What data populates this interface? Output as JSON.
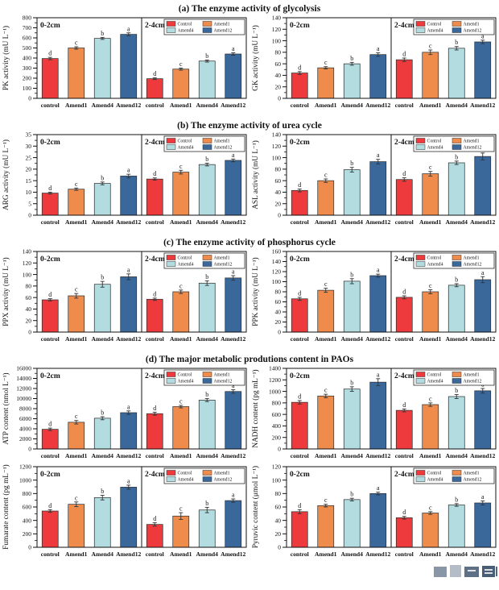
{
  "figure": {
    "sections": [
      {
        "id": "a",
        "title": "(a) The enzyme activity of glycolysis"
      },
      {
        "id": "b",
        "title": "(b) The enzyme activity of urea cycle"
      },
      {
        "id": "c",
        "title": "(c) The enzyme activity of phosphorus cycle"
      },
      {
        "id": "d",
        "title": "(d) The major metabolic produtions content in PAOs"
      }
    ],
    "panel_labels": [
      "0-2cm",
      "2-4cm"
    ],
    "categories": [
      "control",
      "Amend1",
      "Amend4",
      "Amend12"
    ]
  },
  "legend": {
    "position": "top-right of 2-4cm panel",
    "items": [
      {
        "label": "Control",
        "color": "#ee3a3c"
      },
      {
        "label": "Amend1",
        "color": "#ef8c4c"
      },
      {
        "label": "Amend4",
        "color": "#b2dce0"
      },
      {
        "label": "Amend12",
        "color": "#3a689b"
      }
    ]
  },
  "chart_data": [
    {
      "id": "pk",
      "section": "a",
      "type": "bar",
      "ylabel": "PK activity (mU L⁻¹)",
      "ylim": [
        0,
        800
      ],
      "ystep": 100,
      "categories": [
        "control",
        "Amend1",
        "Amend4",
        "Amend12"
      ],
      "panels": [
        {
          "label": "0-2cm",
          "values": [
            395,
            500,
            595,
            635
          ],
          "errors": [
            12,
            12,
            10,
            15
          ],
          "letters": [
            "d",
            "c",
            "b",
            "a"
          ]
        },
        {
          "label": "2-4cm",
          "values": [
            195,
            290,
            370,
            440
          ],
          "errors": [
            8,
            10,
            10,
            12
          ],
          "letters": [
            "d",
            "c",
            "b",
            "a"
          ]
        }
      ]
    },
    {
      "id": "gk",
      "section": "a",
      "type": "bar",
      "ylabel": "GK activity (mU L⁻¹)",
      "ylim": [
        0,
        140
      ],
      "ystep": 20,
      "categories": [
        "control",
        "Amend1",
        "Amend4",
        "Amend12"
      ],
      "panels": [
        {
          "label": "0-2cm",
          "values": [
            44,
            53,
            60,
            76
          ],
          "errors": [
            2.5,
            2,
            2.5,
            3
          ],
          "letters": [
            "d",
            "c",
            "b",
            "a"
          ]
        },
        {
          "label": "2-4cm",
          "values": [
            67,
            80,
            87,
            98
          ],
          "errors": [
            3,
            4,
            3,
            3
          ],
          "letters": [
            "d",
            "c",
            "b",
            "a"
          ]
        }
      ]
    },
    {
      "id": "arg",
      "section": "b",
      "type": "bar",
      "ylabel": "ARG activity (mU L⁻¹)",
      "ylim": [
        0,
        35
      ],
      "ystep": 5,
      "categories": [
        "control",
        "Amend1",
        "Amend4",
        "Amend12"
      ],
      "panels": [
        {
          "label": "0-2cm",
          "values": [
            9.6,
            11.3,
            13.8,
            17
          ],
          "errors": [
            0.4,
            0.5,
            0.6,
            0.8
          ],
          "letters": [
            "d",
            "c",
            "b",
            "a"
          ]
        },
        {
          "label": "2-4cm",
          "values": [
            15.7,
            18.7,
            22,
            23.8
          ],
          "errors": [
            0.5,
            0.8,
            0.6,
            0.6
          ],
          "letters": [
            "d",
            "c",
            "b",
            "a"
          ]
        }
      ]
    },
    {
      "id": "asl",
      "section": "b",
      "type": "bar",
      "ylabel": "ASL activity (mU L⁻¹)",
      "ylim": [
        0,
        140
      ],
      "ystep": 20,
      "categories": [
        "control",
        "Amend1",
        "Amend4",
        "Amend12"
      ],
      "panels": [
        {
          "label": "0-2cm",
          "values": [
            43,
            60,
            79,
            93
          ],
          "errors": [
            2.5,
            3,
            4,
            4
          ],
          "letters": [
            "d",
            "c",
            "b",
            "a"
          ]
        },
        {
          "label": "2-4cm",
          "values": [
            62,
            72,
            91,
            102
          ],
          "errors": [
            3,
            4,
            3,
            6
          ],
          "letters": [
            "d",
            "c",
            "b",
            "a"
          ]
        }
      ]
    },
    {
      "id": "ppx",
      "section": "c",
      "type": "bar",
      "ylabel": "PPX activity (mU L⁻¹)",
      "ylim": [
        0,
        140
      ],
      "ystep": 20,
      "categories": [
        "control",
        "Amend1",
        "Amend4",
        "Amend12"
      ],
      "panels": [
        {
          "label": "0-2cm",
          "values": [
            56,
            63,
            83,
            96
          ],
          "errors": [
            2,
            4,
            5,
            5
          ],
          "letters": [
            "d",
            "c",
            "b",
            "a"
          ]
        },
        {
          "label": "2-4cm",
          "values": [
            57,
            70,
            85,
            94
          ],
          "errors": [
            2,
            3,
            4,
            4
          ],
          "letters": [
            "d",
            "c",
            "b",
            "a"
          ]
        }
      ]
    },
    {
      "id": "ppk",
      "section": "c",
      "type": "bar",
      "ylabel": "PPK activity (mU L⁻¹)",
      "ylim": [
        0,
        160
      ],
      "ystep": 20,
      "categories": [
        "control",
        "Amend1",
        "Amend4",
        "Amend12"
      ],
      "panels": [
        {
          "label": "0-2cm",
          "values": [
            66,
            83,
            101,
            112
          ],
          "errors": [
            3,
            4,
            5,
            3
          ],
          "letters": [
            "d",
            "c",
            "b",
            "a"
          ]
        },
        {
          "label": "2-4cm",
          "values": [
            69,
            80,
            93,
            104
          ],
          "errors": [
            3,
            4,
            3,
            6
          ],
          "letters": [
            "d",
            "c",
            "b",
            "a"
          ]
        }
      ]
    },
    {
      "id": "atp",
      "section": "d",
      "type": "bar",
      "ylabel": "ATP content (nmol L⁻¹)",
      "ylim": [
        0,
        16000
      ],
      "ystep": 2000,
      "categories": [
        "control",
        "Amend1",
        "Amend4",
        "Amend12"
      ],
      "panels": [
        {
          "label": "0-2cm",
          "values": [
            3900,
            5300,
            6100,
            7200
          ],
          "errors": [
            250,
            350,
            300,
            350
          ],
          "letters": [
            "d",
            "c",
            "b",
            "a"
          ]
        },
        {
          "label": "2-4cm",
          "values": [
            7000,
            8400,
            9700,
            11400
          ],
          "errors": [
            300,
            250,
            300,
            350
          ],
          "letters": [
            "d",
            "c",
            "b",
            "a"
          ]
        }
      ]
    },
    {
      "id": "nadh",
      "section": "d",
      "type": "bar",
      "ylabel": "NADH content (pg mL⁻¹)",
      "ylim": [
        0,
        1400
      ],
      "ystep": 200,
      "categories": [
        "control",
        "Amend1",
        "Amend4",
        "Amend12"
      ],
      "panels": [
        {
          "label": "0-2cm",
          "values": [
            810,
            920,
            1040,
            1160
          ],
          "errors": [
            30,
            30,
            40,
            60
          ],
          "letters": [
            "d",
            "c",
            "b",
            "a"
          ]
        },
        {
          "label": "2-4cm",
          "values": [
            670,
            770,
            910,
            1010
          ],
          "errors": [
            25,
            30,
            35,
            40
          ],
          "letters": [
            "d",
            "c",
            "b",
            "a"
          ]
        }
      ]
    },
    {
      "id": "fumarate",
      "section": "d",
      "type": "bar",
      "ylabel": "Fumarate content (pg mL⁻¹)",
      "ylim": [
        0,
        1200
      ],
      "ystep": 200,
      "categories": [
        "control",
        "Amend1",
        "Amend4",
        "Amend12"
      ],
      "panels": [
        {
          "label": "0-2cm",
          "values": [
            540,
            640,
            740,
            895
          ],
          "errors": [
            20,
            35,
            35,
            30
          ],
          "letters": [
            "d",
            "c",
            "b",
            "a"
          ]
        },
        {
          "label": "2-4cm",
          "values": [
            340,
            465,
            555,
            695
          ],
          "errors": [
            25,
            50,
            40,
            25
          ],
          "letters": [
            "d",
            "c",
            "b",
            "a"
          ]
        }
      ]
    },
    {
      "id": "pyruvic",
      "section": "d",
      "type": "bar",
      "ylabel": "Pyruvic content (μmol L⁻¹)",
      "ylim": [
        0,
        120
      ],
      "ystep": 20,
      "categories": [
        "control",
        "Amend1",
        "Amend4",
        "Amend12"
      ],
      "panels": [
        {
          "label": "0-2cm",
          "values": [
            53,
            62,
            71,
            80
          ],
          "errors": [
            3,
            2,
            2,
            2
          ],
          "letters": [
            "d",
            "c",
            "b",
            "a"
          ]
        },
        {
          "label": "2-4cm",
          "values": [
            44,
            51,
            63,
            66
          ],
          "errors": [
            2,
            2,
            2,
            3
          ],
          "letters": [
            "d",
            "c",
            "b",
            "a"
          ]
        }
      ]
    }
  ],
  "style": {
    "bar_stroke": "#2a2a2a",
    "axis_color": "#111111",
    "error_bar_color": "#333333"
  },
  "watermark": {
    "position": "bottom-right",
    "color": "#16304f"
  }
}
